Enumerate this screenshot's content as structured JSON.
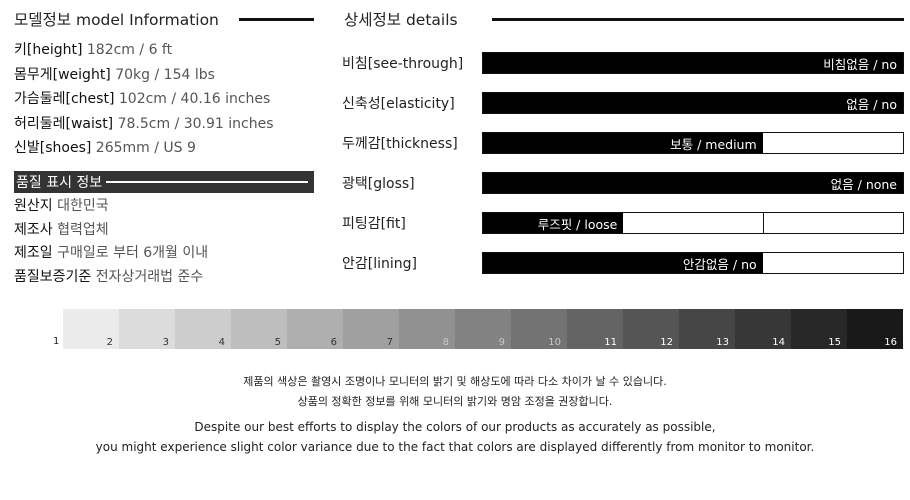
{
  "model": {
    "title": "모델정보 model Information",
    "rows": [
      {
        "key": "키[height]",
        "value": "182cm / 6 ft"
      },
      {
        "key": "몸무게[weight]",
        "value": "70kg / 154 lbs"
      },
      {
        "key": "가슴둘레[chest]",
        "value": "102cm / 40.16 inches"
      },
      {
        "key": "허리둘레[waist]",
        "value": "78.5cm / 30.91 inches"
      },
      {
        "key": "신발[shoes]",
        "value": "265mm / US 9"
      }
    ]
  },
  "quality": {
    "title": "품질 표시 정보",
    "rows": [
      {
        "key": "원산지",
        "value": "대한민국"
      },
      {
        "key": "제조사",
        "value": "협력업체"
      },
      {
        "key": "제조일",
        "value": "구매일로 부터 6개월 이내"
      },
      {
        "key": "품질보증기준",
        "value": "전자상거래법 준수"
      }
    ]
  },
  "details": {
    "title": "상세정보 details",
    "rows": [
      {
        "label": "비침[see-through]",
        "value": "비침없음 / no",
        "filled_fraction": 1.0,
        "divisions": 1
      },
      {
        "label": "신축성[elasticity]",
        "value": "없음 / no",
        "filled_fraction": 1.0,
        "divisions": 1
      },
      {
        "label": "두께감[thickness]",
        "value": "보통 / medium",
        "filled_fraction": 0.667,
        "divisions": 3
      },
      {
        "label": "광택[gloss]",
        "value": "없음 / none",
        "filled_fraction": 1.0,
        "divisions": 1
      },
      {
        "label": "피팅감[fit]",
        "value": "루즈핏 / loose",
        "filled_fraction": 0.333,
        "divisions": 3
      },
      {
        "label": "안감[lining]",
        "value": "안감없음 / no",
        "filled_fraction": 0.667,
        "divisions": 3
      }
    ]
  },
  "grayscale": {
    "labels": [
      "1",
      "2",
      "3",
      "4",
      "5",
      "6",
      "7",
      "8",
      "9",
      "10",
      "11",
      "12",
      "13",
      "14",
      "15",
      "16"
    ],
    "colors": [
      "#ebebeb",
      "#dcdcdc",
      "#cdcdcd",
      "#bebebe",
      "#afafaf",
      "#a0a0a0",
      "#919191",
      "#828282",
      "#737373",
      "#646464",
      "#555555",
      "#464646",
      "#373737",
      "#282828",
      "#191919",
      "#000000"
    ]
  },
  "notice": {
    "ko_line1": "제품의 색상은 촬영시 조명이나 모니터의 밝기 및 해상도에 따라 다소 차이가 날 수 있습니다.",
    "ko_line2": "상품의 정확한 정보를 위해 모니터의 밝기와 명암 조정을 권장합니다.",
    "en_line1": "Despite our best efforts to display the colors of our products as accurately as possible,",
    "en_line2": "you might experience slight color variance due to the fact that colors are displayed differently from monitor to monitor."
  }
}
